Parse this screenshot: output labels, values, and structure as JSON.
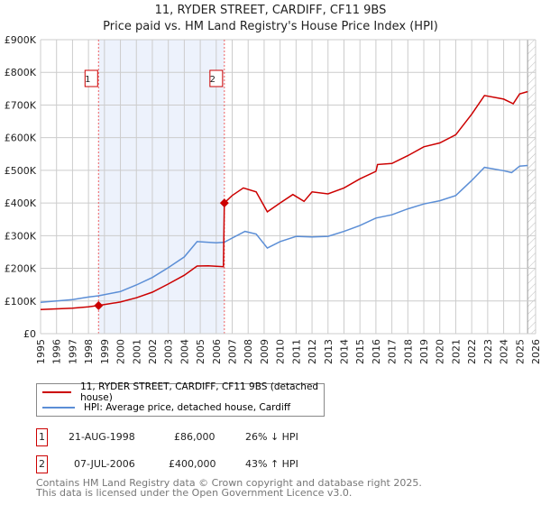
{
  "title": "11, RYDER STREET, CARDIFF, CF11 9BS",
  "subtitle": "Price paid vs. HM Land Registry's House Price Index (HPI)",
  "colors": {
    "property": "#cc0000",
    "hpi": "#5b8ed6",
    "shade": "#edf2fc",
    "grid": "#cccccc"
  },
  "chart_data": {
    "type": "line",
    "title": "11, RYDER STREET, CARDIFF, CF11 9BS",
    "xlim": [
      1995,
      2026
    ],
    "ylim": [
      0,
      900000
    ],
    "x_ticks": [
      "1995",
      "1996",
      "1997",
      "1998",
      "1999",
      "2000",
      "2001",
      "2002",
      "2003",
      "2004",
      "2005",
      "2006",
      "2007",
      "2008",
      "2009",
      "2010",
      "2011",
      "2012",
      "2013",
      "2014",
      "2015",
      "2016",
      "2017",
      "2018",
      "2019",
      "2020",
      "2021",
      "2022",
      "2023",
      "2024",
      "2025",
      "2026"
    ],
    "y_ticks": [
      {
        "v": 0,
        "label": "£0"
      },
      {
        "v": 100000,
        "label": "£100K"
      },
      {
        "v": 200000,
        "label": "£200K"
      },
      {
        "v": 300000,
        "label": "£300K"
      },
      {
        "v": 400000,
        "label": "£400K"
      },
      {
        "v": 500000,
        "label": "£500K"
      },
      {
        "v": 600000,
        "label": "£600K"
      },
      {
        "v": 700000,
        "label": "£700K"
      },
      {
        "v": 800000,
        "label": "£800K"
      },
      {
        "v": 900000,
        "label": "£900K"
      }
    ],
    "grid": true,
    "forecast_hatch_from": 2025.5,
    "series": [
      {
        "name": "11, RYDER STREET, CARDIFF, CF11 9BS (detached house)",
        "color": "#cc0000",
        "x": [
          1995,
          1996,
          1997,
          1998,
          1998.63,
          2000,
          2001,
          2002,
          2003,
          2004,
          2004.8,
          2005.5,
          2006.45,
          2006.51,
          2007,
          2007.7,
          2008.5,
          2009.2,
          2010,
          2010.8,
          2011.5,
          2012,
          2013,
          2014,
          2015,
          2016,
          2016.1,
          2017,
          2018,
          2019,
          2020,
          2021,
          2022,
          2022.8,
          2024,
          2024.6,
          2025,
          2025.5
        ],
        "y": [
          74000,
          76000,
          78000,
          82000,
          86000,
          97000,
          110000,
          127000,
          152000,
          179000,
          207000,
          208000,
          205000,
          400000,
          423000,
          446000,
          434000,
          373000,
          400000,
          426000,
          405000,
          434000,
          428000,
          446000,
          474000,
          497000,
          518000,
          521000,
          545000,
          572000,
          584000,
          609000,
          672000,
          729000,
          718000,
          704000,
          734000,
          741000
        ]
      },
      {
        "name": "HPI: Average price, detached house, Cardiff",
        "color": "#5b8ed6",
        "x": [
          1995,
          1996,
          1997,
          1998,
          1998.63,
          2000,
          2001,
          2002,
          2003,
          2004,
          2004.8,
          2006,
          2006.5,
          2007.8,
          2008.5,
          2009.2,
          2010,
          2011,
          2012,
          2013,
          2014,
          2015,
          2016,
          2017,
          2018,
          2019,
          2020,
          2021,
          2022,
          2022.8,
          2024,
          2024.5,
          2025,
          2025.5
        ],
        "y": [
          96000,
          100000,
          104000,
          112000,
          116000,
          129000,
          149000,
          172000,
          202000,
          235000,
          282000,
          278000,
          280000,
          313000,
          305000,
          262000,
          282000,
          298000,
          296000,
          298000,
          313000,
          331000,
          354000,
          364000,
          382000,
          397000,
          407000,
          423000,
          469000,
          509000,
          499000,
          493000,
          513000,
          515000
        ]
      }
    ],
    "sales": [
      {
        "id": "1",
        "x": 1998.63,
        "y": 86000
      },
      {
        "id": "2",
        "x": 2006.51,
        "y": 400000
      }
    ]
  },
  "legend": {
    "property": "11, RYDER STREET, CARDIFF, CF11 9BS (detached house)",
    "hpi": "HPI: Average price, detached house, Cardiff"
  },
  "transactions": [
    {
      "id": "1",
      "date": "21-AUG-1998",
      "price": "£86,000",
      "hpi": "26% ↓ HPI"
    },
    {
      "id": "2",
      "date": "07-JUL-2006",
      "price": "£400,000",
      "hpi": "43% ↑ HPI"
    }
  ],
  "footer": {
    "line1": "Contains HM Land Registry data © Crown copyright and database right 2025.",
    "line2": "This data is licensed under the Open Government Licence v3.0."
  }
}
